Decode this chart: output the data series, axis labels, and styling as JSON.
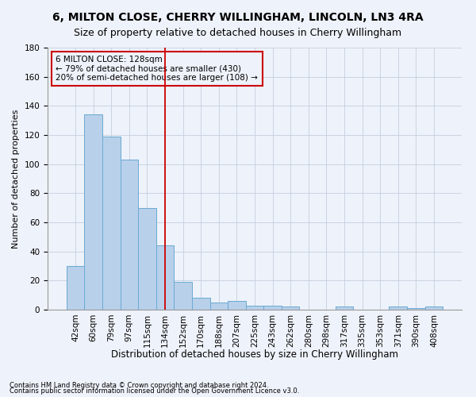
{
  "title": "6, MILTON CLOSE, CHERRY WILLINGHAM, LINCOLN, LN3 4RA",
  "subtitle": "Size of property relative to detached houses in Cherry Willingham",
  "xlabel": "Distribution of detached houses by size in Cherry Willingham",
  "ylabel": "Number of detached properties",
  "footnote1": "Contains HM Land Registry data © Crown copyright and database right 2024.",
  "footnote2": "Contains public sector information licensed under the Open Government Licence v3.0.",
  "annotation_line1": "6 MILTON CLOSE: 128sqm",
  "annotation_line2": "← 79% of detached houses are smaller (430)",
  "annotation_line3": "20% of semi-detached houses are larger (108) →",
  "bar_labels": [
    "42sqm",
    "60sqm",
    "79sqm",
    "97sqm",
    "115sqm",
    "134sqm",
    "152sqm",
    "170sqm",
    "188sqm",
    "207sqm",
    "225sqm",
    "243sqm",
    "262sqm",
    "280sqm",
    "298sqm",
    "317sqm",
    "335sqm",
    "353sqm",
    "371sqm",
    "390sqm",
    "408sqm"
  ],
  "bar_values": [
    30,
    134,
    119,
    103,
    70,
    44,
    19,
    8,
    5,
    6,
    3,
    3,
    2,
    0,
    0,
    2,
    0,
    0,
    2,
    1,
    2
  ],
  "bar_color": "#b8d0ea",
  "bar_edge_color": "#6aaad4",
  "vline_x": 5,
  "vline_color": "#cc0000",
  "ylim": [
    0,
    180
  ],
  "yticks": [
    0,
    20,
    40,
    60,
    80,
    100,
    120,
    140,
    160,
    180
  ],
  "bg_color": "#eef2fa",
  "annotation_box_color": "#cc0000",
  "title_fontsize": 10,
  "subtitle_fontsize": 9,
  "xlabel_fontsize": 8.5,
  "ylabel_fontsize": 8,
  "tick_fontsize": 7.5,
  "annot_fontsize": 7.5,
  "footnote_fontsize": 6
}
